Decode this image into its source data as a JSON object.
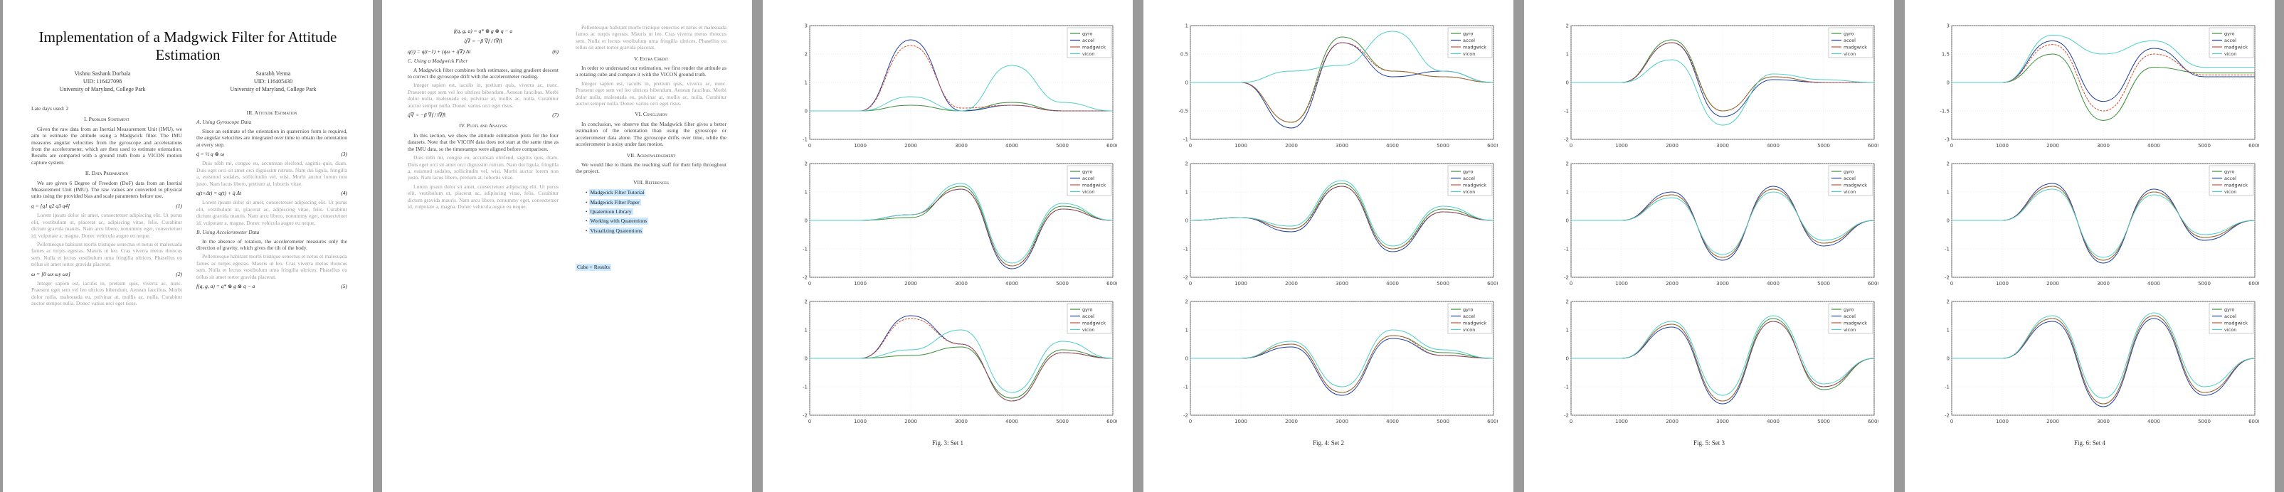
{
  "paper": {
    "title_line1": "Implementation of a Madgwick Filter for Attitude",
    "title_line2": "Estimation",
    "authors": [
      {
        "name": "Vishnu Sashank Dorbala",
        "id": "UID: 116427098",
        "affiliation": "University of Maryland, College Park"
      },
      {
        "name": "Saurabh Verma",
        "id": "UID: 116405430",
        "affiliation": "University of Maryland, College Park"
      }
    ],
    "date": "Late days used: 2"
  },
  "sections": {
    "s1": "I. Problem Statement",
    "s2": "II. Data Preparation",
    "s3": "III. Attitude Estimation",
    "s3a": "A. Using Gyroscope Data",
    "s3b": "B. Using Accelerometer Data",
    "s3c": "C. Using a Madgwick Filter",
    "s4": "IV. Plots and Analysis",
    "s5": "V. Extra Credit",
    "s6": "VI. Conclusion",
    "s7": "VII. Acknowledgement",
    "s8": "VIII. References"
  },
  "text": {
    "p1_intro": "Given the raw data from an Inertial Measurement Unit (IMU), we aim to estimate the attitude using a Madgwick filter. The IMU measures angular velocities from the gyroscope and accelerations from the accelerometer, which are then used to estimate orientation. Results are compared with a ground truth from a VICON motion capture system.",
    "p1_data": "We are given 6 Degree of Freedom (DoF) data from an Inertial Measurement Unit (IMU). The raw values are converted to physical units using the provided bias and scale parameters before use.",
    "p2_gyro": "Since an estimate of the orientation in quaternion form is required, the angular velocities are integrated over time to obtain the orientation at every step.",
    "p2_acc": "In the absence of rotation, the accelerometer measures only the direction of gravity, which gives the tilt of the body.",
    "p2_madgwick": "A Madgwick filter combines both estimates, using gradient descent to correct the gyroscope drift with the accelerometer reading.",
    "p2_plots": "In this section, we show the attitude estimation plots for the four datasets. Note that the VICON data does not start at the same time as the IMU data, so the timestamps were aligned before comparison.",
    "p3_extra": "In order to understand our estimation, we first render the attitude as a rotating cube and compare it with the VICON ground truth.",
    "p3_conclusion": "In conclusion, we observe that the Madgwick filter gives a better estimation of the orientation than using the gyroscope or accelerometer data alone. The gyroscope drifts over time, while the accelerometer is noisy under fast motion.",
    "p3_ack": "We would like to thank the teaching staff for their help throughout the project.",
    "lorem1": "Lorem ipsum dolor sit amet, consectetuer adipiscing elit. Ut purus elit, vestibulum ut, placerat ac, adipiscing vitae, felis. Curabitur dictum gravida mauris. Nam arcu libero, nonummy eget, consectetuer id, vulputate a, magna. Donec vehicula augue eu neque.",
    "lorem2": "Pellentesque habitant morbi tristique senectus et netus et malesuada fames ac turpis egestas. Mauris ut leo. Cras viverra metus rhoncus sem. Nulla et lectus vestibulum urna fringilla ultrices. Phasellus eu tellus sit amet tortor gravida placerat.",
    "lorem3": "Integer sapien est, iaculis in, pretium quis, viverra ac, nunc. Praesent eget sem vel leo ultrices bibendum. Aenean faucibus. Morbi dolor nulla, malesuada eu, pulvinar at, mollis ac, nulla. Curabitur auctor semper nulla. Donec varius orci eget risus.",
    "lorem4": "Duis nibh mi, congue eu, accumsan eleifend, sagittis quis, diam. Duis eget orci sit amet orci dignissim rutrum. Nam dui ligula, fringilla a, euismod sodales, sollicitudin vel, wisi. Morbi auctor lorem non justo. Nam lacus libero, pretium at, lobortis vitae."
  },
  "equations": {
    "eq1": "q = [q1 q2 q3 q4]",
    "eq2": "ω = [0 ωx ωy ωz]",
    "eq3": "q̇ = ½ q ⊗ ω",
    "eq4": "q(t+Δt) = q(t) + q̇ Δt",
    "eq5": "f(q, g, a) = q* ⊗ g ⊗ q − a",
    "eq6": "q̇∇ = −β ∇f / ‖∇f‖",
    "eq7": "q(t) = q(t−1) + (q̇ω + q̇∇) Δt",
    "n1": "(1)",
    "n2": "(2)",
    "n3": "(3)",
    "n4": "(4)",
    "n5": "(5)",
    "n6": "(6)",
    "n7": "(7)"
  },
  "references": {
    "items": [
      "Madgwick Filter Tutorial",
      "Madgwick Filter Paper",
      "Quaternion Library",
      "Working with Quaternions",
      "Visualizing Quaternions"
    ],
    "footer_box": "Cube + Results"
  },
  "figures": [
    {
      "caption": "Fig. 3: Set 1"
    },
    {
      "caption": "Fig. 4: Set 2"
    },
    {
      "caption": "Fig. 5: Set 3"
    },
    {
      "caption": "Fig. 6: Set 4"
    }
  ],
  "legend": [
    "gyro",
    "accel",
    "madgwick",
    "vicon"
  ],
  "colors": {
    "gyro": "#3a8f3a",
    "accel": "#1f3fa0",
    "madgwick": "#d94a2a",
    "vicon": "#4fd0c8"
  },
  "chart_data": [
    {
      "type": "line",
      "figure": "Fig. 3: Set 1",
      "grid": true,
      "legend_position": "top-right",
      "x": [
        0,
        1000,
        2000,
        3000,
        4000,
        5000,
        6000
      ],
      "xlim": [
        0,
        6000
      ],
      "subplots": [
        {
          "ylim": [
            -1,
            3
          ],
          "series": [
            {
              "name": "gyro",
              "values": [
                0,
                0,
                0.2,
                0,
                0.3,
                0,
                0
              ]
            },
            {
              "name": "accel",
              "values": [
                0,
                0,
                2.5,
                0,
                0.2,
                0,
                0
              ]
            },
            {
              "name": "madgwick",
              "values": [
                0,
                0,
                2.3,
                0.1,
                0.2,
                0,
                0
              ]
            },
            {
              "name": "vicon",
              "values": [
                0,
                0,
                0.5,
                0,
                1.6,
                0.3,
                0
              ]
            }
          ]
        },
        {
          "ylim": [
            -2,
            2
          ],
          "series": [
            {
              "name": "gyro",
              "values": [
                0,
                0,
                0.1,
                1.2,
                -1.6,
                0.5,
                0
              ]
            },
            {
              "name": "accel",
              "values": [
                0,
                0,
                0.2,
                1.1,
                -1.7,
                0.4,
                0
              ]
            },
            {
              "name": "madgwick",
              "values": [
                0,
                0,
                0.2,
                1.1,
                -1.6,
                0.4,
                0
              ]
            },
            {
              "name": "vicon",
              "values": [
                0,
                0,
                0.2,
                1.3,
                -1.5,
                0.6,
                0
              ]
            }
          ]
        },
        {
          "ylim": [
            -2,
            2
          ],
          "series": [
            {
              "name": "gyro",
              "values": [
                0,
                0,
                0.1,
                0.4,
                -1.4,
                0.3,
                0
              ]
            },
            {
              "name": "accel",
              "values": [
                0,
                0,
                1.5,
                0.5,
                -1.5,
                0.2,
                0
              ]
            },
            {
              "name": "madgwick",
              "values": [
                0,
                0,
                1.4,
                0.5,
                -1.5,
                0.2,
                0
              ]
            },
            {
              "name": "vicon",
              "values": [
                0,
                0,
                0.3,
                1.0,
                -1.2,
                0.6,
                0
              ]
            }
          ]
        }
      ]
    },
    {
      "type": "line",
      "figure": "Fig. 4: Set 2",
      "grid": true,
      "legend_position": "top-right",
      "x": [
        0,
        1000,
        2000,
        3000,
        4000,
        5000,
        6000
      ],
      "xlim": [
        0,
        6000
      ],
      "subplots": [
        {
          "ylim": [
            -1,
            1
          ],
          "series": [
            {
              "name": "gyro",
              "values": [
                0,
                0,
                -0.7,
                0.8,
                0.2,
                0.1,
                0
              ]
            },
            {
              "name": "accel",
              "values": [
                0,
                0,
                -0.8,
                0.7,
                0.1,
                0.2,
                0
              ]
            },
            {
              "name": "madgwick",
              "values": [
                0,
                0,
                -0.7,
                0.7,
                0.2,
                0.1,
                0
              ]
            },
            {
              "name": "vicon",
              "values": [
                0,
                0,
                0.2,
                0.3,
                0.9,
                0.2,
                0
              ]
            }
          ]
        },
        {
          "ylim": [
            -2,
            2
          ],
          "series": [
            {
              "name": "gyro",
              "values": [
                0,
                0.1,
                -0.3,
                1.3,
                -1.0,
                0.4,
                0
              ]
            },
            {
              "name": "accel",
              "values": [
                0,
                0.1,
                -0.4,
                1.2,
                -1.1,
                0.3,
                0
              ]
            },
            {
              "name": "madgwick",
              "values": [
                0,
                0.1,
                -0.3,
                1.2,
                -1.0,
                0.3,
                0
              ]
            },
            {
              "name": "vicon",
              "values": [
                0,
                0.1,
                -0.2,
                1.4,
                -0.9,
                0.5,
                0
              ]
            }
          ]
        },
        {
          "ylim": [
            -2,
            2
          ],
          "series": [
            {
              "name": "gyro",
              "values": [
                0,
                0,
                0.5,
                -1.2,
                0.8,
                0.2,
                0
              ]
            },
            {
              "name": "accel",
              "values": [
                0,
                0,
                0.4,
                -1.3,
                0.7,
                0.1,
                0
              ]
            },
            {
              "name": "madgwick",
              "values": [
                0,
                0,
                0.5,
                -1.2,
                0.8,
                0.1,
                0
              ]
            },
            {
              "name": "vicon",
              "values": [
                0,
                0,
                0.6,
                -1.0,
                1.0,
                0.3,
                0
              ]
            }
          ]
        }
      ]
    },
    {
      "type": "line",
      "figure": "Fig. 5: Set 3",
      "grid": true,
      "legend_position": "top-right",
      "x": [
        0,
        1000,
        2000,
        3000,
        4000,
        5000,
        6000
      ],
      "xlim": [
        0,
        6000
      ],
      "subplots": [
        {
          "ylim": [
            -2,
            2
          ],
          "series": [
            {
              "name": "gyro",
              "values": [
                0,
                0,
                1.5,
                -1.0,
                0.2,
                0,
                0
              ]
            },
            {
              "name": "accel",
              "values": [
                0,
                0,
                1.4,
                -1.2,
                0.1,
                0,
                0
              ]
            },
            {
              "name": "madgwick",
              "values": [
                0,
                0,
                1.4,
                -1.0,
                0.2,
                0,
                0
              ]
            },
            {
              "name": "vicon",
              "values": [
                0,
                0,
                0.8,
                -1.5,
                0.3,
                0.1,
                0
              ]
            }
          ]
        },
        {
          "ylim": [
            -2,
            2
          ],
          "series": [
            {
              "name": "gyro",
              "values": [
                0,
                0,
                0.9,
                -1.3,
                1.1,
                -0.8,
                0
              ]
            },
            {
              "name": "accel",
              "values": [
                0,
                0,
                1.0,
                -1.4,
                1.2,
                -0.9,
                0
              ]
            },
            {
              "name": "madgwick",
              "values": [
                0,
                0,
                0.9,
                -1.3,
                1.1,
                -0.8,
                0
              ]
            },
            {
              "name": "vicon",
              "values": [
                0,
                0,
                0.8,
                -1.2,
                1.0,
                -0.7,
                0
              ]
            }
          ]
        },
        {
          "ylim": [
            -2,
            2
          ],
          "series": [
            {
              "name": "gyro",
              "values": [
                0,
                0,
                1.2,
                -1.5,
                1.4,
                -1.1,
                0
              ]
            },
            {
              "name": "accel",
              "values": [
                0,
                0,
                1.1,
                -1.6,
                1.3,
                -1.0,
                0
              ]
            },
            {
              "name": "madgwick",
              "values": [
                0,
                0,
                1.2,
                -1.5,
                1.3,
                -1.0,
                0
              ]
            },
            {
              "name": "vicon",
              "values": [
                0,
                0,
                1.3,
                -1.3,
                1.5,
                -0.9,
                0
              ]
            }
          ]
        }
      ]
    },
    {
      "type": "line",
      "figure": "Fig. 6: Set 4",
      "grid": true,
      "legend_position": "top-right",
      "x": [
        0,
        1000,
        2000,
        3000,
        4000,
        5000,
        6000
      ],
      "xlim": [
        0,
        6000
      ],
      "subplots": [
        {
          "ylim": [
            -3,
            3
          ],
          "series": [
            {
              "name": "gyro",
              "values": [
                0,
                0,
                1.5,
                -2.0,
                0.8,
                0.5,
                0.5
              ]
            },
            {
              "name": "accel",
              "values": [
                0,
                0,
                2.2,
                -1.0,
                1.8,
                0.3,
                0.3
              ]
            },
            {
              "name": "madgwick",
              "values": [
                0,
                0,
                2.0,
                -1.5,
                1.5,
                0.4,
                0.4
              ]
            },
            {
              "name": "vicon",
              "values": [
                0,
                0,
                2.5,
                1.5,
                2.2,
                0.8,
                0.8
              ]
            }
          ]
        },
        {
          "ylim": [
            -2,
            2
          ],
          "series": [
            {
              "name": "gyro",
              "values": [
                0,
                0,
                1.2,
                -1.4,
                1.0,
                -0.6,
                0
              ]
            },
            {
              "name": "accel",
              "values": [
                0,
                0,
                1.3,
                -1.5,
                1.1,
                -0.7,
                0
              ]
            },
            {
              "name": "madgwick",
              "values": [
                0,
                0,
                1.2,
                -1.4,
                1.0,
                -0.6,
                0
              ]
            },
            {
              "name": "vicon",
              "values": [
                0,
                0,
                1.1,
                -1.3,
                0.9,
                -0.5,
                0
              ]
            }
          ]
        },
        {
          "ylim": [
            -2,
            2
          ],
          "series": [
            {
              "name": "gyro",
              "values": [
                0,
                0,
                1.4,
                -1.6,
                1.5,
                -1.2,
                0
              ]
            },
            {
              "name": "accel",
              "values": [
                0,
                0,
                1.3,
                -1.7,
                1.4,
                -1.3,
                0
              ]
            },
            {
              "name": "madgwick",
              "values": [
                0,
                0,
                1.4,
                -1.6,
                1.5,
                -1.2,
                0
              ]
            },
            {
              "name": "vicon",
              "values": [
                0,
                0,
                1.5,
                -1.4,
                1.6,
                -1.0,
                0
              ]
            }
          ]
        }
      ]
    }
  ]
}
